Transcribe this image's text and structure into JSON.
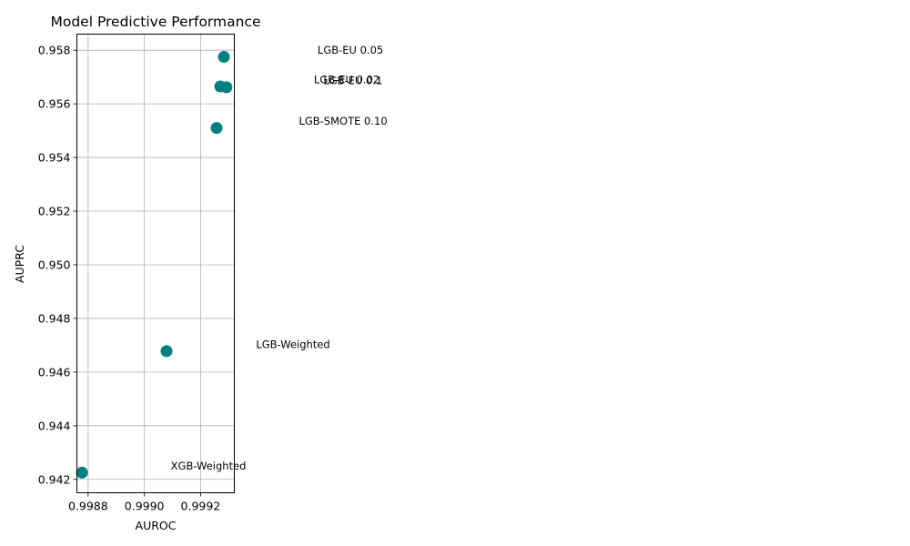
{
  "chart_data": {
    "type": "scatter",
    "title": "Model Predictive Performance",
    "xlabel": "AUROC",
    "ylabel": "AUPRC",
    "xlim": [
      0.99876,
      0.99932
    ],
    "ylim": [
      0.9415,
      0.9586
    ],
    "xticks": [
      {
        "value": 0.9988,
        "label": "0.9988"
      },
      {
        "value": 0.999,
        "label": "0.9990"
      },
      {
        "value": 0.9992,
        "label": "0.9992"
      }
    ],
    "yticks": [
      {
        "value": 0.942,
        "label": "0.942"
      },
      {
        "value": 0.944,
        "label": "0.944"
      },
      {
        "value": 0.946,
        "label": "0.946"
      },
      {
        "value": 0.948,
        "label": "0.948"
      },
      {
        "value": 0.95,
        "label": "0.950"
      },
      {
        "value": 0.952,
        "label": "0.952"
      },
      {
        "value": 0.954,
        "label": "0.954"
      },
      {
        "value": 0.956,
        "label": "0.956"
      },
      {
        "value": 0.958,
        "label": "0.958"
      }
    ],
    "grid": true,
    "marker_color": "#008080",
    "points": [
      {
        "label": "LGB-EU 0.05",
        "x": 0.999283,
        "y": 0.95775
      },
      {
        "label": "LGB-EU 0.02",
        "x": 0.99927,
        "y": 0.95665
      },
      {
        "label": "LGB-EU 0.1",
        "x": 0.999292,
        "y": 0.95662
      },
      {
        "label": "LGB-SMOTE 0.10",
        "x": 0.999257,
        "y": 0.9551
      },
      {
        "label": "LGB-Weighted",
        "x": 0.999079,
        "y": 0.94678
      },
      {
        "label": "XGB-Weighted",
        "x": 0.998778,
        "y": 0.94225
      }
    ]
  }
}
